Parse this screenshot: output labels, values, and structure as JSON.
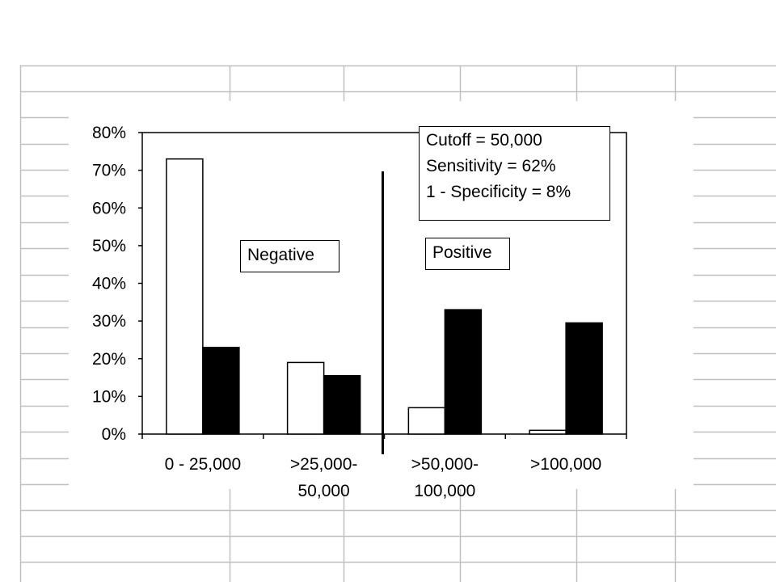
{
  "chart_data": {
    "type": "bar",
    "categories": [
      "0 - 25,000",
      ">25,000-50,000",
      ">50,000-100,000",
      ">100,000"
    ],
    "category_lines": [
      [
        "0 - 25,000"
      ],
      [
        ">25,000-",
        "50,000"
      ],
      [
        ">50,000-",
        "100,000"
      ],
      [
        ">100,000"
      ]
    ],
    "series": [
      {
        "values": [
          73,
          19,
          7,
          1
        ],
        "color": "#ffffff"
      },
      {
        "values": [
          23,
          15.5,
          33,
          29.5
        ],
        "color": "#000000"
      }
    ],
    "ylim": [
      0,
      80
    ],
    "yticks": [
      0,
      10,
      20,
      30,
      40,
      50,
      60,
      70,
      80
    ],
    "ytick_labels": [
      "0%",
      "10%",
      "20%",
      "30%",
      "40%",
      "50%",
      "60%",
      "70%",
      "80%"
    ],
    "cutoff_between": [
      1,
      2
    ],
    "grid": false,
    "legend": "none"
  },
  "annotations": {
    "cutoff_lines": [
      "Cutoff = 50,000",
      "Sensitivity = 62%",
      "1 - Specificity = 8%"
    ],
    "negative": "Negative",
    "positive": "Positive"
  },
  "colors": {
    "gridline": "#c0c0c0",
    "bar_outline": "#000000"
  }
}
